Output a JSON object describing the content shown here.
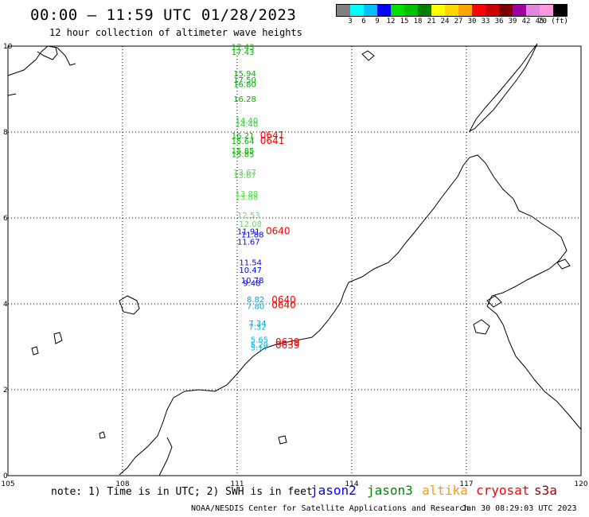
{
  "title": "00:00 – 11:59 UTC 01/28/2023",
  "subtitle": "12 hour collection of altimeter wave heights",
  "colorbar": {
    "colors": [
      "#808080",
      "#00ffff",
      "#00bfff",
      "#0000ff",
      "#00e000",
      "#00c000",
      "#008000",
      "#ffff00",
      "#ffd700",
      "#ffa500",
      "#ff0000",
      "#cc0000",
      "#800000",
      "#a000a0",
      "#dd88dd",
      "#ff99dd",
      "#000000"
    ],
    "labels": [
      "3",
      "6",
      "9",
      "12",
      "15",
      "18",
      "21",
      "24",
      "27",
      "30",
      "33",
      "36",
      "39",
      "42",
      "45",
      "70 (ft)"
    ]
  },
  "axes": {
    "x_ticks": [
      "105",
      "108",
      "111",
      "114",
      "117",
      "120"
    ],
    "y_ticks": [
      "0",
      "2",
      "4",
      "6",
      "8",
      "10"
    ]
  },
  "wave_labels": [
    {
      "text": "17.43",
      "lon": 110.85,
      "lat": 9.92,
      "color": "#00b000"
    },
    {
      "text": "17.43",
      "lon": 110.85,
      "lat": 9.8,
      "color": "#00b000"
    },
    {
      "text": "15.94",
      "lon": 110.9,
      "lat": 9.3,
      "color": "#00b000"
    },
    {
      "text": "17.50",
      "lon": 110.9,
      "lat": 9.15,
      "color": "#00b000"
    },
    {
      "text": "16.80",
      "lon": 110.9,
      "lat": 9.05,
      "color": "#00b000"
    },
    {
      "text": "16.28",
      "lon": 110.9,
      "lat": 8.7,
      "color": "#00b000"
    },
    {
      "text": "14.40",
      "lon": 110.95,
      "lat": 8.2,
      "color": "#33cc33"
    },
    {
      "text": "14.40",
      "lon": 110.95,
      "lat": 8.12,
      "color": "#33cc33"
    },
    {
      "text": "16.21",
      "lon": 110.85,
      "lat": 7.85,
      "color": "#00b000"
    },
    {
      "text": "15.64",
      "lon": 110.85,
      "lat": 7.72,
      "color": "#00b000"
    },
    {
      "text": "15.85",
      "lon": 110.85,
      "lat": 7.5,
      "color": "#00b000"
    },
    {
      "text": "15.85",
      "lon": 110.85,
      "lat": 7.42,
      "color": "#00b000"
    },
    {
      "text": "13.67",
      "lon": 110.9,
      "lat": 7.0,
      "color": "#55dd55"
    },
    {
      "text": "13.67",
      "lon": 110.9,
      "lat": 6.93,
      "color": "#55dd55"
    },
    {
      "text": "13.88",
      "lon": 110.95,
      "lat": 6.5,
      "color": "#55dd55"
    },
    {
      "text": "13.88",
      "lon": 110.95,
      "lat": 6.42,
      "color": "#55dd55"
    },
    {
      "text": "12.53",
      "lon": 111.0,
      "lat": 6.0,
      "color": "#66dd66"
    },
    {
      "text": "12.08",
      "lon": 111.05,
      "lat": 5.8,
      "color": "#66dd66"
    },
    {
      "text": "11.91",
      "lon": 111.0,
      "lat": 5.62,
      "color": "#0000ff"
    },
    {
      "text": "11.88",
      "lon": 111.1,
      "lat": 5.55,
      "color": "#0000ff"
    },
    {
      "text": "11.67",
      "lon": 111.0,
      "lat": 5.38,
      "color": "#0000ff"
    },
    {
      "text": "11.54",
      "lon": 111.05,
      "lat": 4.9,
      "color": "#0000ff"
    },
    {
      "text": "10.47",
      "lon": 111.05,
      "lat": 4.72,
      "color": "#0000ff"
    },
    {
      "text": "10.78",
      "lon": 111.1,
      "lat": 4.48,
      "color": "#0000ff"
    },
    {
      "text": "9.48",
      "lon": 111.15,
      "lat": 4.42,
      "color": "#0000ff"
    },
    {
      "text": "8.82",
      "lon": 111.25,
      "lat": 4.04,
      "color": "#00aadd"
    },
    {
      "text": "7.80",
      "lon": 111.25,
      "lat": 3.88,
      "color": "#00aadd"
    },
    {
      "text": "7.34",
      "lon": 111.3,
      "lat": 3.48,
      "color": "#00aadd"
    },
    {
      "text": "7.32",
      "lon": 111.3,
      "lat": 3.4,
      "color": "#00aadd"
    },
    {
      "text": "5.65",
      "lon": 111.35,
      "lat": 3.1,
      "color": "#00bbee"
    },
    {
      "text": "5.20",
      "lon": 111.35,
      "lat": 2.98,
      "color": "#00bbee"
    },
    {
      "text": "5.17",
      "lon": 111.35,
      "lat": 2.92,
      "color": "#00bbee"
    }
  ],
  "time_labels": [
    {
      "text": "0641",
      "lon": 111.6,
      "lat": 7.85,
      "color": "#ff0000"
    },
    {
      "text": "0641",
      "lon": 111.6,
      "lat": 7.72,
      "color": "#ff0000"
    },
    {
      "text": "0640",
      "lon": 111.75,
      "lat": 5.62,
      "color": "#ff0000"
    },
    {
      "text": "0640",
      "lon": 111.9,
      "lat": 4.02,
      "color": "#ff0000"
    },
    {
      "text": "0640",
      "lon": 111.9,
      "lat": 3.9,
      "color": "#ff0000"
    },
    {
      "text": "0639",
      "lon": 112.0,
      "lat": 3.04,
      "color": "#ff0000"
    },
    {
      "text": "0639",
      "lon": 112.0,
      "lat": 2.96,
      "color": "#ff0000"
    }
  ],
  "note": "note: 1) Time is in UTC; 2) SWH is in feet",
  "legend": [
    {
      "label": "jason2",
      "color": "#0000ff"
    },
    {
      "label": "jason3",
      "color": "#008800"
    },
    {
      "label": "altika",
      "color": "#ff9900"
    },
    {
      "label": "cryosat",
      "color": "#ff0000"
    },
    {
      "label": "s3a",
      "color": "#990000"
    }
  ],
  "footer_left": "NOAA/NESDIS Center for Satellite Applications and Research",
  "footer_right": "Jan 30 08:29:03 UTC 2023"
}
